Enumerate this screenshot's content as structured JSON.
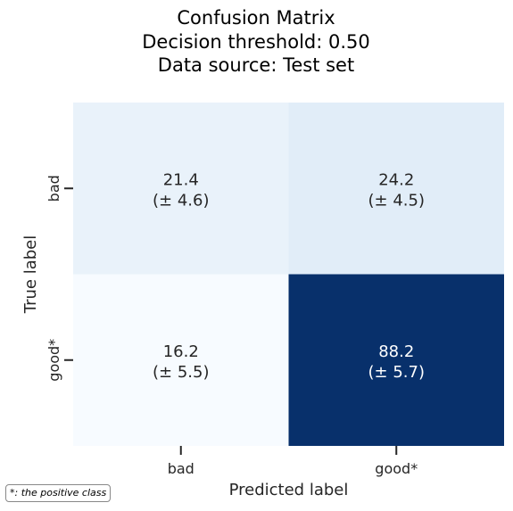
{
  "chart_data": {
    "type": "heatmap",
    "title_lines": [
      "Confusion Matrix",
      "Decision threshold: 0.50",
      "Data source: Test set"
    ],
    "xlabel": "Predicted label",
    "ylabel": "True label",
    "x_categories": [
      "bad",
      "good*"
    ],
    "y_categories": [
      "bad",
      "good*"
    ],
    "values": [
      [
        21.4,
        24.2
      ],
      [
        16.2,
        88.2
      ]
    ],
    "std": [
      [
        4.6,
        4.5
      ],
      [
        5.5,
        5.7
      ]
    ],
    "cell_labels": [
      [
        {
          "value": "21.4",
          "std": "(± 4.6)"
        },
        {
          "value": "24.2",
          "std": "(± 4.5)"
        }
      ],
      [
        {
          "value": "16.2",
          "std": "(± 5.5)"
        },
        {
          "value": "88.2",
          "std": "(± 5.7)"
        }
      ]
    ],
    "colormap": "Blues",
    "colors": {
      "low": "#f7fbff",
      "high": "#08306b",
      "text_dark": "#262626",
      "text_light": "#ffffff"
    },
    "colorbar": false,
    "grid": false
  },
  "footnote": "*: the positive class"
}
